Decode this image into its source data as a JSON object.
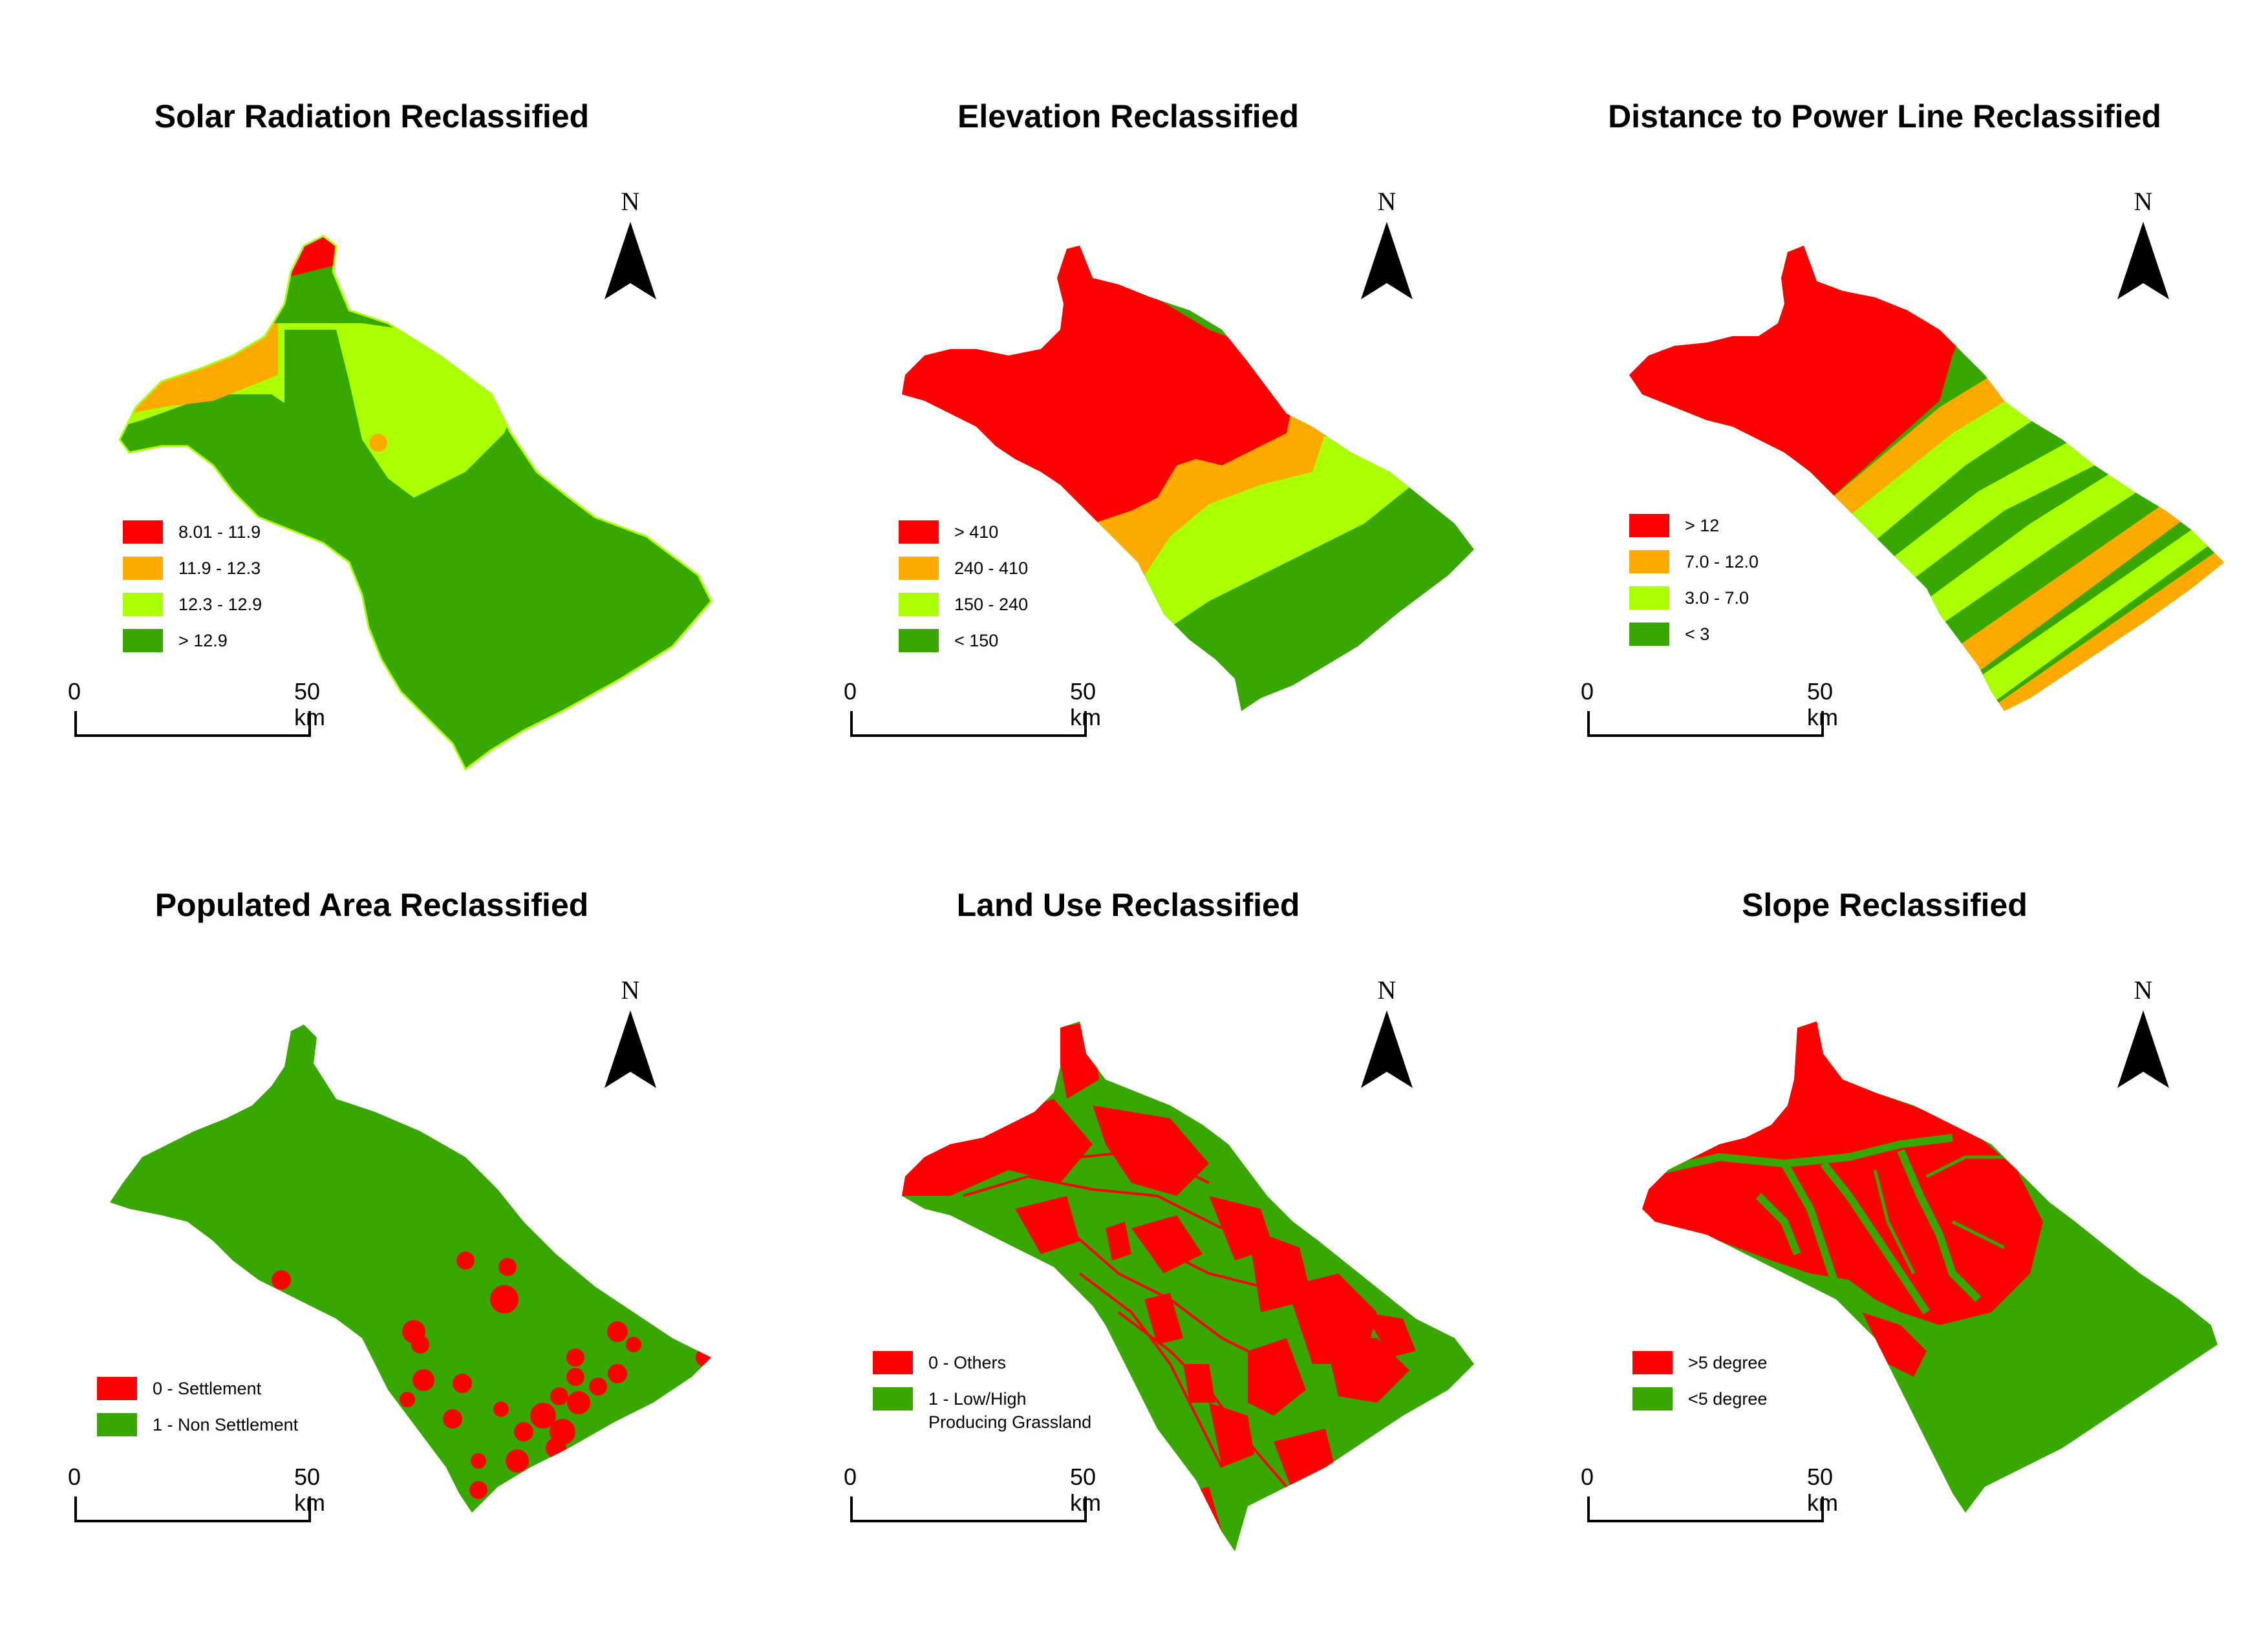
{
  "colors": {
    "red": "#ff0000",
    "orange": "#ffaa00",
    "yellow_green": "#aaff00",
    "green": "#38a800",
    "map_green": "#3ca800"
  },
  "scale_bar": {
    "zero": "0",
    "fifty": "50 km"
  },
  "north_arrow": {
    "label": "N"
  },
  "panels": [
    {
      "title": "Solar Radiation Reclassified",
      "legend": [
        {
          "label": "8.01 - 11.9",
          "color": "#ff0000"
        },
        {
          "label": "11.9 - 12.3",
          "color": "#ffaa00"
        },
        {
          "label": "12.3 - 12.9",
          "color": "#aaff00"
        },
        {
          "label": "> 12.9",
          "color": "#38a800"
        }
      ]
    },
    {
      "title": "Elevation Reclassified",
      "legend": [
        {
          "label": "> 410",
          "color": "#ff0000"
        },
        {
          "label": "240 - 410",
          "color": "#ffaa00"
        },
        {
          "label": "150 -  240",
          "color": "#aaff00"
        },
        {
          "label": "< 150",
          "color": "#38a800"
        }
      ]
    },
    {
      "title": "Distance to Power Line Reclassified",
      "legend": [
        {
          "label": "> 12",
          "color": "#ff0000"
        },
        {
          "label": "7.0 - 12.0",
          "color": "#ffaa00"
        },
        {
          "label": "3.0 - 7.0",
          "color": "#aaff00"
        },
        {
          "label": "< 3",
          "color": "#38a800"
        }
      ]
    },
    {
      "title": "Populated Area Reclassified",
      "legend": [
        {
          "label": "0 - Settlement",
          "color": "#ff0000"
        },
        {
          "label": "1 - Non Settlement",
          "color": "#38a800"
        }
      ]
    },
    {
      "title": "Land Use Reclassified",
      "legend": [
        {
          "label": "0 - Others",
          "color": "#ff0000"
        },
        {
          "label": "1 - Low/High\nProducing Grassland",
          "color": "#38a800"
        }
      ]
    },
    {
      "title": "Slope Reclassified",
      "legend": [
        {
          "label": ">5 degree",
          "color": "#ff0000"
        },
        {
          "label": "<5 degree",
          "color": "#38a800"
        }
      ]
    }
  ]
}
